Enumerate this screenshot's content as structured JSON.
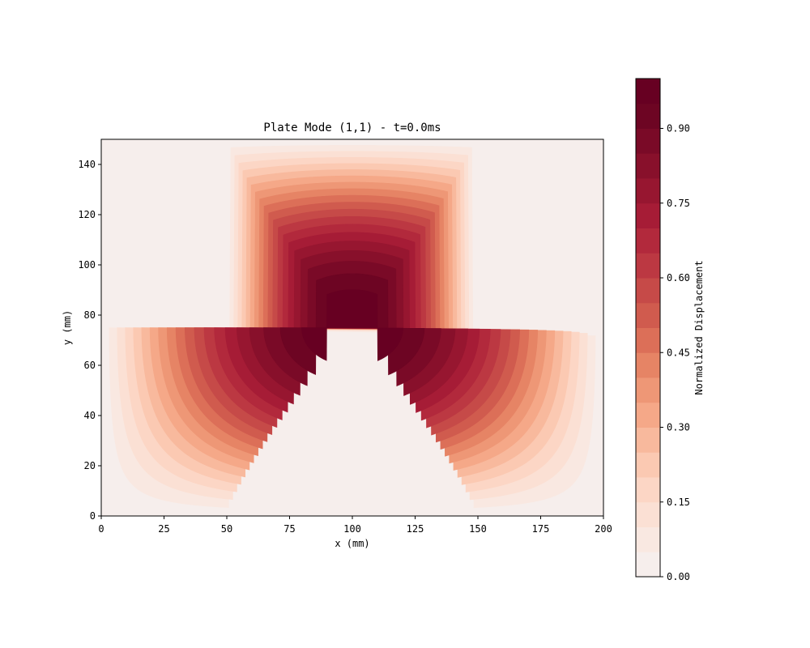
{
  "chart_data": {
    "type": "heatmap",
    "subtype": "filled-contour",
    "title": "Plate Mode (1,1) - t=0.0ms",
    "xlabel": "x (mm)",
    "ylabel": "y (mm)",
    "xlim": [
      0,
      200
    ],
    "ylim": [
      0,
      150
    ],
    "x_ticks": [
      0,
      25,
      50,
      75,
      100,
      125,
      150,
      175,
      200
    ],
    "y_ticks": [
      0,
      20,
      40,
      60,
      80,
      100,
      120,
      140
    ],
    "function": "sin(pi*x/200) * sin(pi*y/150)",
    "mode": [
      1,
      1
    ],
    "time_ms": 0.0,
    "peak": {
      "x": 100,
      "y": 75,
      "value": 1.0
    },
    "contour_levels": [
      0.0,
      0.05,
      0.1,
      0.15,
      0.2,
      0.25,
      0.3,
      0.35,
      0.4,
      0.45,
      0.5,
      0.55,
      0.6,
      0.65,
      0.7,
      0.75,
      0.8,
      0.85,
      0.9,
      0.95,
      1.0
    ],
    "colormap": "RdBu_r (upper half)",
    "level_colors": [
      "#f6eeec",
      "#f9e8e1",
      "#fbe0d4",
      "#fcd6c5",
      "#fbc9b2",
      "#f8b99d",
      "#f5a888",
      "#ee9776",
      "#e68465",
      "#dc6f58",
      "#d05b4e",
      "#c64a48",
      "#bc3842",
      "#b2293c",
      "#a61c36",
      "#971630",
      "#88102b",
      "#7a0a27",
      "#6d0523",
      "#670022"
    ],
    "grid": false,
    "colorbar": {
      "label": "Normalized Displacement",
      "range": [
        0,
        1
      ],
      "ticks": [
        "0.00",
        "0.15",
        "0.30",
        "0.45",
        "0.60",
        "0.75",
        "0.90"
      ],
      "tick_values": [
        0,
        0.15,
        0.3,
        0.45,
        0.6,
        0.75,
        0.9
      ],
      "placement": "right"
    }
  }
}
